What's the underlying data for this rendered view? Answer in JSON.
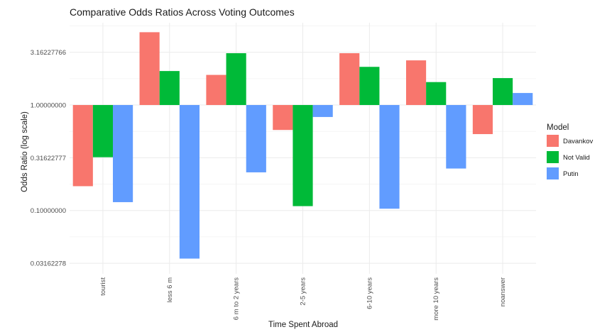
{
  "chart_data": {
    "type": "bar",
    "title": "Comparative Odds Ratios Across Voting Outcomes",
    "xlabel": "Time Spent Abroad",
    "ylabel": "Odds Ratio (log scale)",
    "y_scale": "log10",
    "ylim": [
      0.0251,
      6.03
    ],
    "y_ticks": [
      0.03162278,
      0.1,
      0.31622777,
      1.0,
      3.16227766
    ],
    "y_tick_labels": [
      "0.03162278",
      "0.10000000",
      "0.31622777",
      "1.00000000",
      "3.16227766"
    ],
    "categories": [
      "tourist",
      "less 6 m",
      "6 m to 2 years",
      "2-5 years",
      "6-10 years",
      "more 10 years",
      "noanswer"
    ],
    "series": [
      {
        "name": "Davankov",
        "color": "#F8766D",
        "values": [
          0.17,
          4.9,
          1.93,
          0.58,
          3.1,
          2.65,
          0.53
        ]
      },
      {
        "name": "Not Valid",
        "color": "#00BA38",
        "values": [
          0.32,
          2.1,
          3.1,
          0.11,
          2.3,
          1.65,
          1.8
        ]
      },
      {
        "name": "Putin",
        "color": "#619CFF",
        "values": [
          0.12,
          0.035,
          0.23,
          0.77,
          0.104,
          0.25,
          1.3
        ]
      }
    ],
    "legend": {
      "title": "Model",
      "position": "right"
    },
    "grid": true,
    "theme": "minimal"
  }
}
